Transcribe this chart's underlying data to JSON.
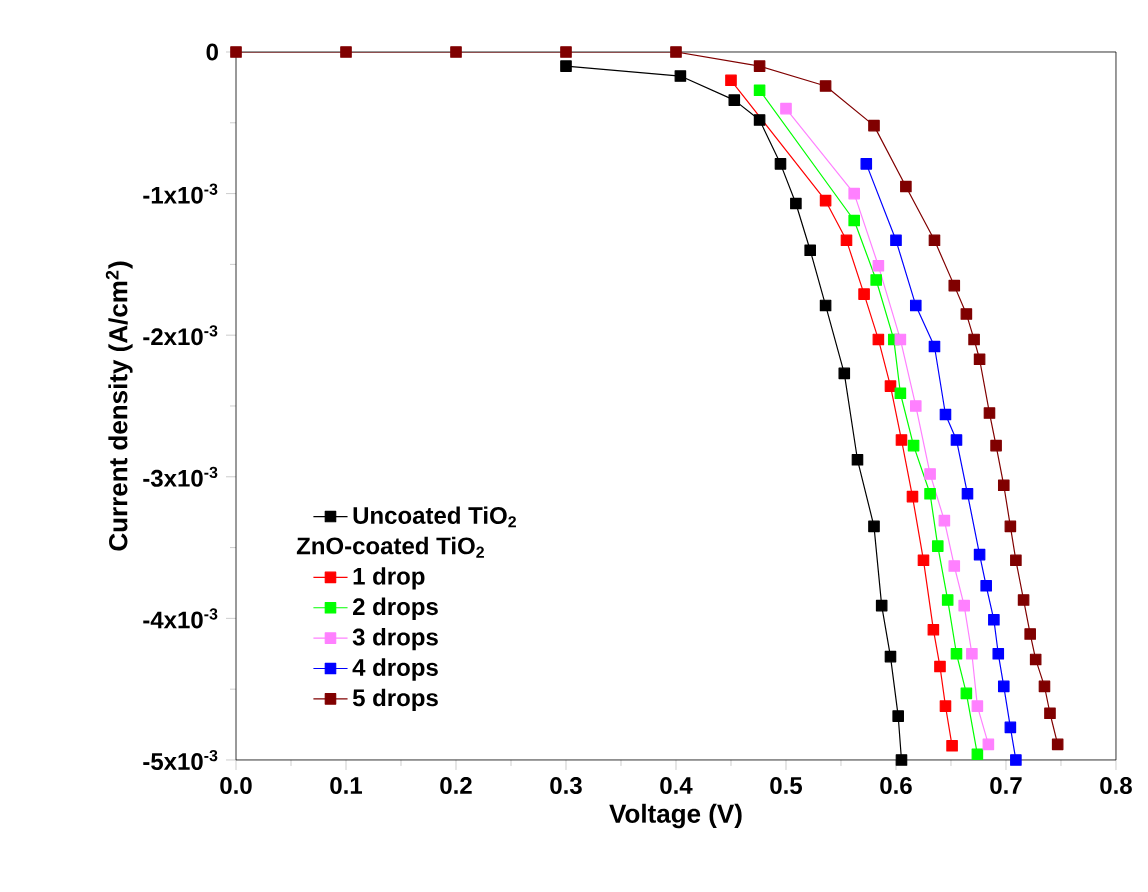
{
  "chart_data": {
    "type": "line",
    "xlabel": "Voltage (V)",
    "ylabel": "Current density (A/cm$^{2}$)",
    "xlim": [
      0,
      0.8
    ],
    "xticks": [
      {
        "value": 0,
        "label": "0.0"
      },
      0.1,
      0.2,
      0.3,
      0.4,
      0.5,
      0.6,
      0.7,
      0.8
    ],
    "ylim": [
      -0.005,
      0
    ],
    "yticks": [
      {
        "value": -0.005,
        "label": "-5x10$^{-3}$"
      },
      {
        "value": -0.004,
        "label": "-4x10$^{-3}$"
      },
      {
        "value": -0.003,
        "label": "-3x10$^{-3}$"
      },
      {
        "value": -0.002,
        "label": "-2x10$^{-3}$"
      },
      {
        "value": -0.001,
        "label": "-1x10$^{-3}$"
      },
      0
    ],
    "legend": "bottom left",
    "marker": "square",
    "line_style": "solid",
    "grid": false,
    "annotations": [
      "ZnO-coated TiO$_{2}$"
    ],
    "series": [
      {
        "name": "Uncoated TiO$_{2}$",
        "color": "#000000",
        "x": [
          0.3,
          0.404,
          0.453,
          0.476,
          0.495,
          0.509,
          0.522,
          0.536,
          0.553,
          0.565,
          0.58,
          0.587,
          0.595,
          0.602,
          0.605
        ],
        "values": [
          -0.0001,
          -0.00017,
          -0.00034,
          -0.00048,
          -0.00079,
          -0.00107,
          -0.0014,
          -0.00179,
          -0.00227,
          -0.00288,
          -0.00335,
          -0.00391,
          -0.00427,
          -0.00469,
          -0.005
        ]
      },
      {
        "name": "1 drop",
        "color": "#ff0000",
        "x": [
          0.45,
          0.536,
          0.555,
          0.571,
          0.584,
          0.595,
          0.605,
          0.615,
          0.625,
          0.634,
          0.64,
          0.645,
          0.651
        ],
        "values": [
          -0.0002,
          -0.00105,
          -0.00133,
          -0.00171,
          -0.00203,
          -0.00236,
          -0.00274,
          -0.00314,
          -0.00359,
          -0.00408,
          -0.00434,
          -0.00462,
          -0.0049
        ]
      },
      {
        "name": "2 drops",
        "color": "#00ff00",
        "x": [
          0.476,
          0.562,
          0.582,
          0.598,
          0.604,
          0.616,
          0.631,
          0.638,
          0.647,
          0.655,
          0.664,
          0.674
        ],
        "values": [
          -0.00027,
          -0.00119,
          -0.00161,
          -0.00203,
          -0.00241,
          -0.00278,
          -0.00312,
          -0.00349,
          -0.00387,
          -0.00425,
          -0.00453,
          -0.00496
        ]
      },
      {
        "name": "3 drops",
        "color": "#ff80ff",
        "x": [
          0.5,
          0.562,
          0.584,
          0.604,
          0.618,
          0.631,
          0.644,
          0.653,
          0.662,
          0.669,
          0.674,
          0.684
        ],
        "values": [
          -0.0004,
          -0.001,
          -0.00151,
          -0.00203,
          -0.0025,
          -0.00298,
          -0.00331,
          -0.00363,
          -0.00391,
          -0.00425,
          -0.00462,
          -0.00489
        ]
      },
      {
        "name": "4 drops",
        "color": "#0000ff",
        "x": [
          0.573,
          0.6,
          0.618,
          0.635,
          0.645,
          0.655,
          0.665,
          0.676,
          0.682,
          0.689,
          0.693,
          0.698,
          0.704,
          0.709
        ],
        "values": [
          -0.00079,
          -0.00133,
          -0.00179,
          -0.00208,
          -0.00256,
          -0.00274,
          -0.00312,
          -0.00355,
          -0.00377,
          -0.00401,
          -0.00425,
          -0.00448,
          -0.00477,
          -0.005
        ]
      },
      {
        "name": "5 drops",
        "color": "#800000",
        "x": [
          0,
          0.1,
          0.2,
          0.3,
          0.4,
          0.476,
          0.536,
          0.58,
          0.609,
          0.635,
          0.653,
          0.664,
          0.671,
          0.676,
          0.685,
          0.691,
          0.698,
          0.704,
          0.709,
          0.716,
          0.722,
          0.727,
          0.735,
          0.74,
          0.747
        ],
        "values": [
          0,
          0,
          0,
          0,
          0,
          -0.0001,
          -0.00024,
          -0.00052,
          -0.00095,
          -0.00133,
          -0.00165,
          -0.00185,
          -0.00203,
          -0.00217,
          -0.00255,
          -0.00278,
          -0.00306,
          -0.00335,
          -0.00359,
          -0.00387,
          -0.00411,
          -0.00429,
          -0.00448,
          -0.00467,
          -0.00489
        ]
      }
    ]
  }
}
